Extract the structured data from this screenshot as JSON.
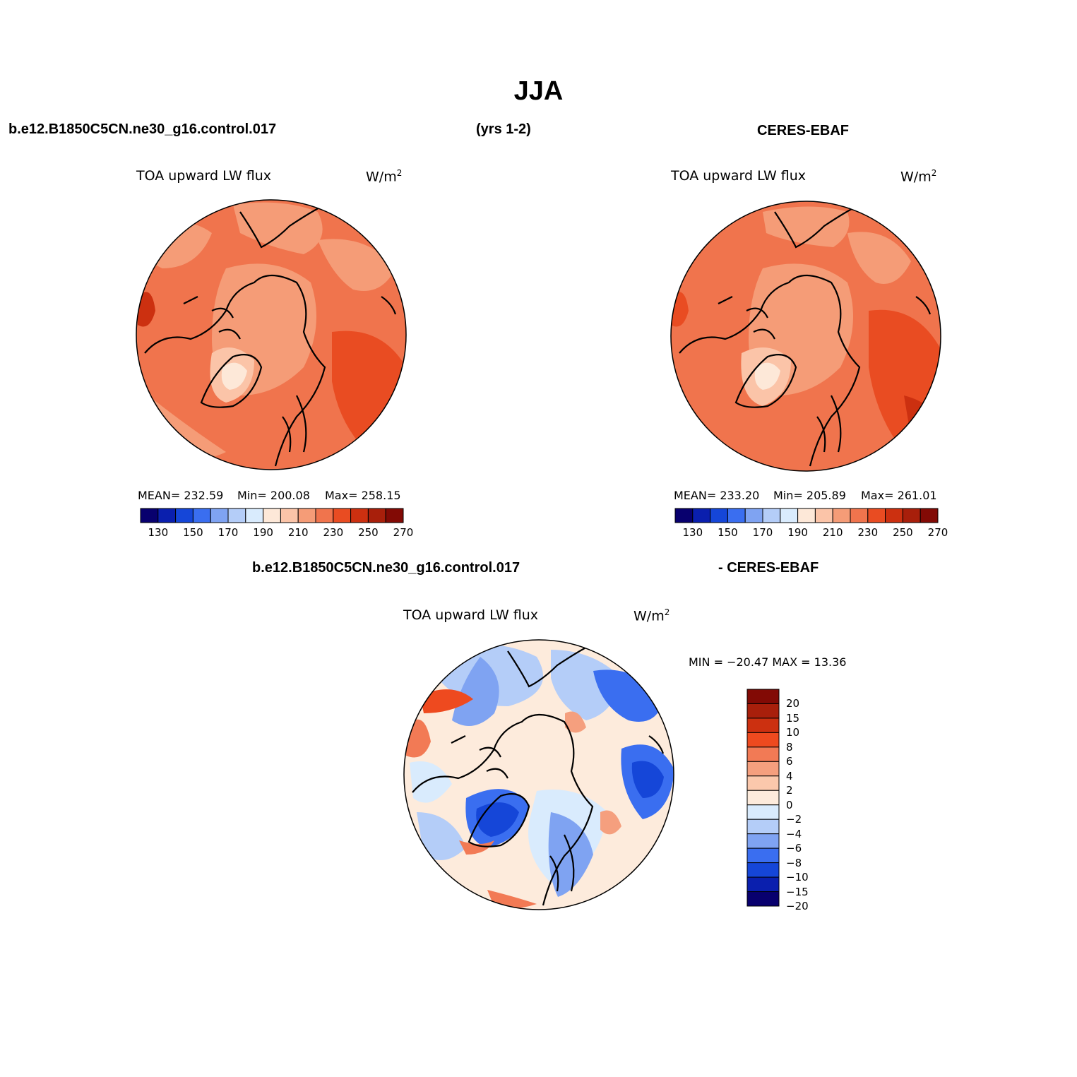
{
  "title": "JJA",
  "header": {
    "left_case": "b.e12.B1850C5CN.ne30_g16.control.017",
    "years": "(yrs 1-2)",
    "right_case": "CERES-EBAF",
    "diff_left": "b.e12.B1850C5CN.ne30_g16.control.017",
    "diff_right": "- CERES-EBAF"
  },
  "panels": {
    "model": {
      "variable": "TOA upward LW flux",
      "units": "W/m",
      "units_sup": "2",
      "mean_label": "MEAN= 232.59",
      "min_label": "Min= 200.08",
      "max_label": "Max= 258.15",
      "mean": 232.59,
      "min": 200.08,
      "max": 258.15
    },
    "obs": {
      "variable": "TOA upward LW flux",
      "units": "W/m",
      "units_sup": "2",
      "mean_label": "MEAN= 233.20",
      "min_label": "Min= 205.89",
      "max_label": "Max= 261.01",
      "mean": 233.2,
      "min": 205.89,
      "max": 261.01
    },
    "diff": {
      "variable": "TOA upward LW flux",
      "units": "W/m",
      "units_sup": "2",
      "minmax_label": "MIN = −20.47 MAX =  13.36",
      "min": -20.47,
      "max": 13.36
    }
  },
  "colorbar_abs": {
    "colors": [
      "#08006e",
      "#0a1fae",
      "#1546d8",
      "#3a6ef0",
      "#7fa3f2",
      "#b4cdf8",
      "#d9ebfd",
      "#fde8d8",
      "#fbc4a8",
      "#f59c77",
      "#f0744d",
      "#e94c22",
      "#cc3010",
      "#a81f0b",
      "#820a05"
    ],
    "ticks": [
      "130",
      "150",
      "170",
      "190",
      "210",
      "230",
      "250",
      "270"
    ]
  },
  "colorbar_diff": {
    "colors": [
      "#820a05",
      "#a81f0b",
      "#cc3010",
      "#ee4a1f",
      "#f27a55",
      "#f59f7e",
      "#fbc8ac",
      "#fdebdc",
      "#d9ebfd",
      "#b4cdf8",
      "#7fa3f2",
      "#3a6ef0",
      "#1546d8",
      "#0a1fae",
      "#08006e"
    ],
    "ticks": [
      "20",
      "15",
      "10",
      "8",
      "6",
      "4",
      "2",
      "0",
      "−2",
      "−4",
      "−6",
      "−8",
      "−10",
      "−15",
      "−20"
    ]
  }
}
